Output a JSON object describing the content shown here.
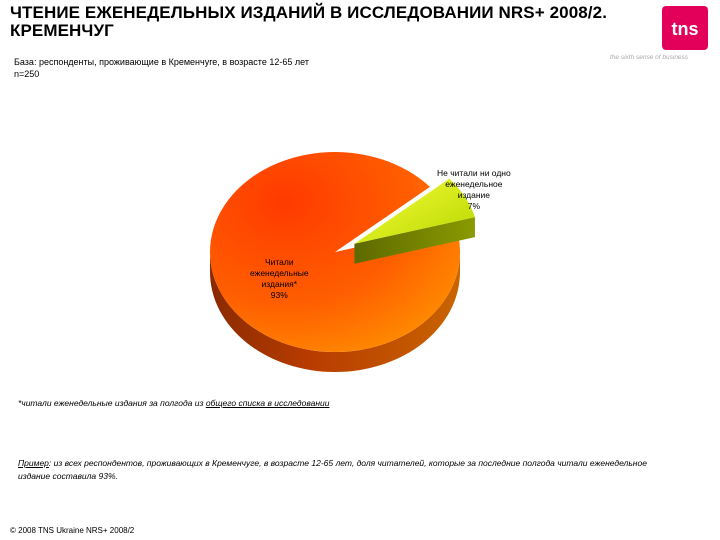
{
  "header": {
    "title_line1": "ЧТЕНИЕ ЕЖЕНЕДЕЛЬНЫХ ИЗДАНИЙ В ИССЛЕДОВАНИИ NRS+ 2008/2.",
    "title_line2": "КРЕМЕНЧУГ",
    "logo_text": "tns",
    "tagline": "the sixth sense of business",
    "brand_color": "#e3005a"
  },
  "base": {
    "line1": "База: респонденты, проживающие в Кременчуге, в возрасте 12-65 лет",
    "line2": "n=250"
  },
  "chart_data": {
    "type": "pie",
    "slices": [
      {
        "label_line1": "Читали",
        "label_line2": "еженедельные",
        "label_line3": "издания*",
        "value_label": "93%",
        "value": 93,
        "color": "#ff6a00"
      },
      {
        "label_line1": "Не читали ни одно",
        "label_line2": "еженедельное",
        "label_line3": "издание",
        "value_label": "7%",
        "value": 7,
        "color": "#d8ef1a"
      }
    ]
  },
  "footnote": {
    "prefix": "*читали еженедельные издания за полгода из ",
    "link": "общего списка в исследовании"
  },
  "example": {
    "label": "Пример",
    "text": ": из всех респондентов, проживающих в Кременчуге, в возрасте 12-65 лет, доля читателей, которые за последние полгода читали еженедельное издание составила  93%."
  },
  "footer": {
    "copyright": "© 2008 TNS Ukraine  NRS+ 2008/2"
  }
}
